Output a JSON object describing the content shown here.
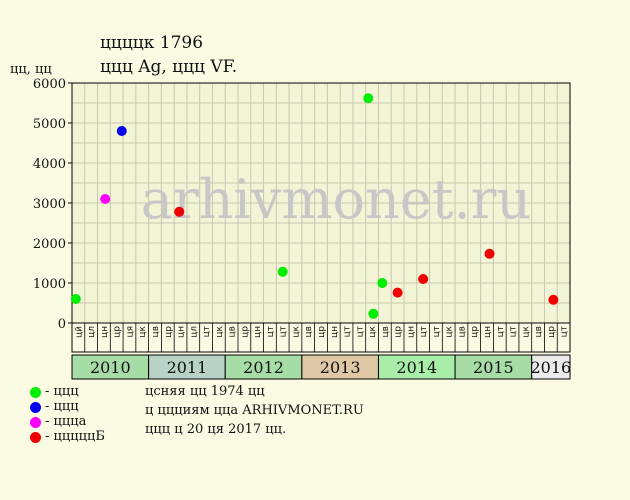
{
  "header": {
    "title": "ццццк 1796",
    "subtitle": "ццц Ag, ццц VF."
  },
  "ylabel": "цц, цц",
  "watermark": "arhivmonet.ru",
  "legend": [
    {
      "label": "- ццц",
      "color": "#00ee00"
    },
    {
      "label": "- ццц",
      "color": "#0000ee"
    },
    {
      "label": "- ццца",
      "color": "#ff00ff"
    },
    {
      "label": "- цццццБ",
      "color": "#ee0000"
    }
  ],
  "notes": [
    "цcняя цц 1974 цц",
    "ц ццциям цца ARHIVMONET.RU",
    "ццц ц 20 ця 2017 цц."
  ],
  "colors": {
    "background": "#fbfbe4",
    "plot_background": "#f3f3d6",
    "grid": "#c8c8b0",
    "watermark": "#c7c7c7"
  },
  "chart_data": {
    "type": "scatter",
    "ylim": [
      0,
      6000
    ],
    "yticks": [
      0,
      1000,
      2000,
      3000,
      4000,
      5000,
      6000
    ],
    "grid": true,
    "month_labels": [
      "цй",
      "цл",
      "цн",
      "цр",
      "ця",
      "цк",
      "цв",
      "цр",
      "цн",
      "цл",
      "цт",
      "цк",
      "цв",
      "цр",
      "цн",
      "цт",
      "цт",
      "цк",
      "цв",
      "цр",
      "цн",
      "цт",
      "цт",
      "цк",
      "цв",
      "цр",
      "цн",
      "цт",
      "цт",
      "цк",
      "цв",
      "цр",
      "цн",
      "цт",
      "цт",
      "цк",
      "цв",
      "цр",
      "цт"
    ],
    "years": [
      {
        "label": "2010",
        "color": "#a6dca6",
        "span": [
          0,
          6
        ]
      },
      {
        "label": "2011",
        "color": "#b8d2c8",
        "span": [
          6,
          12
        ]
      },
      {
        "label": "2012",
        "color": "#a6dca6",
        "span": [
          12,
          18
        ]
      },
      {
        "label": "2013",
        "color": "#e0c8a6",
        "span": [
          18,
          24
        ]
      },
      {
        "label": "2014",
        "color": "#a8eea8",
        "span": [
          24,
          30
        ]
      },
      {
        "label": "2015",
        "color": "#a6dca6",
        "span": [
          30,
          36
        ]
      },
      {
        "label": "2016",
        "color": "#ebebeb",
        "span": [
          36,
          39
        ]
      }
    ],
    "series": [
      {
        "color": "#00ee00",
        "points": [
          {
            "x": 0.3,
            "y": 600
          },
          {
            "x": 16.5,
            "y": 1280
          },
          {
            "x": 23.2,
            "y": 5620
          },
          {
            "x": 23.6,
            "y": 230
          },
          {
            "x": 24.3,
            "y": 1000
          }
        ]
      },
      {
        "color": "#0000ee",
        "points": [
          {
            "x": 3.9,
            "y": 4800
          }
        ]
      },
      {
        "color": "#ff00ff",
        "points": [
          {
            "x": 2.6,
            "y": 3100
          }
        ]
      },
      {
        "color": "#ee0000",
        "points": [
          {
            "x": 8.4,
            "y": 2780
          },
          {
            "x": 25.5,
            "y": 760
          },
          {
            "x": 27.5,
            "y": 1100
          },
          {
            "x": 32.7,
            "y": 1730
          },
          {
            "x": 37.7,
            "y": 580
          }
        ]
      }
    ]
  }
}
